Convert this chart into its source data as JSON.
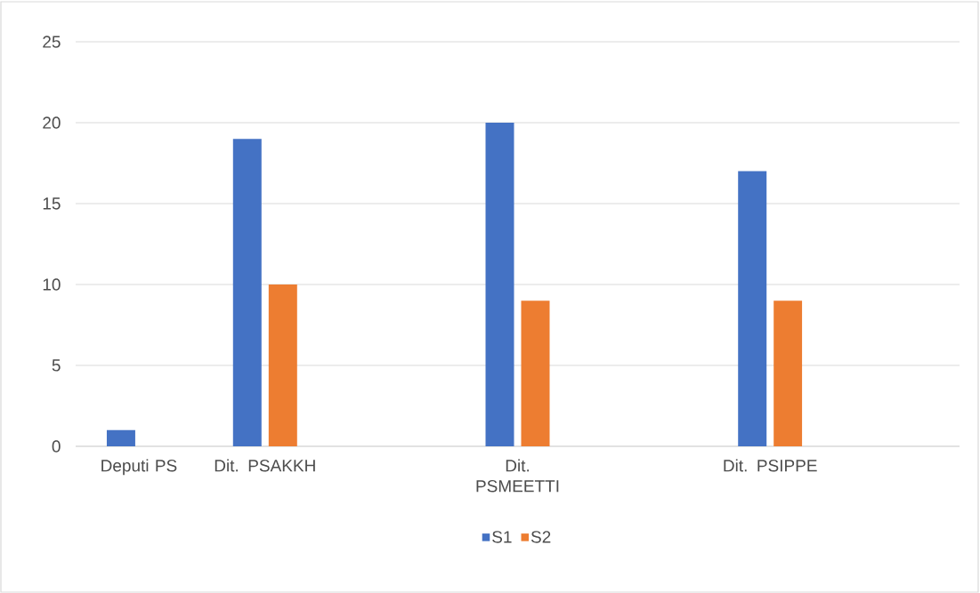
{
  "chart_data": {
    "type": "bar",
    "categories": [
      "Deputi PS",
      "Dit. PSAKKH",
      null,
      "Dit. PSMEETTI",
      null,
      "Dit. PSIPPE",
      null
    ],
    "series": [
      {
        "name": "S1",
        "color": "#4472c4",
        "values": [
          1,
          19,
          null,
          20,
          null,
          17,
          null
        ]
      },
      {
        "name": "S2",
        "color": "#ed7d31",
        "values": [
          null,
          10,
          null,
          9,
          null,
          9,
          null
        ]
      }
    ],
    "ylim": [
      0,
      25
    ],
    "yticks": [
      0,
      5,
      10,
      15,
      20,
      25
    ],
    "grid": "y",
    "legend": "bottom"
  }
}
